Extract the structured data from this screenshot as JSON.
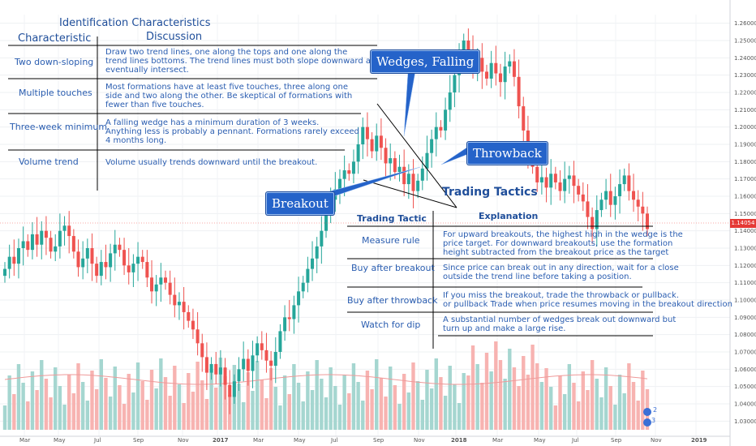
{
  "left_table": {
    "title": "Identification Characteristics",
    "col_characteristic": "Characteristic",
    "col_discussion": "Discussion",
    "rows": [
      {
        "label": "Two down-sloping",
        "text": "Draw two trend lines, one along the tops and one along the\ntrend lines bottoms. The trend lines must both slope downward and\neventually intersect."
      },
      {
        "label": "Multiple touches",
        "text": "Most formations have at least five touches, three along one\nside and two along the other. Be skeptical of formations with\nfewer than five touches."
      },
      {
        "label": "Three-week minimum",
        "text": "A falling wedge has a minimum duration of 3 weeks.\nAnything less is probably a pennant. Formations rarely exceed\n4 months long."
      },
      {
        "label": "Volume trend",
        "text": "Volume usually trends downward until the breakout."
      }
    ]
  },
  "callouts": {
    "wedges": "Wedges, Falling",
    "throwback": "Throwback",
    "breakout": "Breakout"
  },
  "tactics": {
    "title": "Trading Tactics",
    "col_tactic": "Trading Tactic",
    "col_explanation": "Explanation",
    "rows": [
      {
        "label": "Measure rule",
        "text": "For upward breakouts, the highest high in the wedge is the\nprice target. For downward breakouts, use the formation\nheight subtracted from the breakout price as the target"
      },
      {
        "label": "Buy after breakout",
        "text": "Since price can break out in any direction, wait for a close\noutside the trend line before taking a position."
      },
      {
        "label": "Buy after throwback",
        "text": "If you miss the breakout, trade the throwback or pullback.\nor pullback Trade when price resumes moving in the breakout direction"
      },
      {
        "label": "Watch for dip",
        "text": "A substantial number of wedges break out downward but\nturn up and make a large rise."
      }
    ]
  },
  "chart": {
    "current_price": "1.14054",
    "y_ticks": [
      "1.26000",
      "1.25000",
      "1.24000",
      "1.23000",
      "1.22000",
      "1.21000",
      "1.20000",
      "1.19000",
      "1.18000",
      "1.17000",
      "1.16000",
      "1.15000",
      "1.14000",
      "1.13000",
      "1.12000",
      "1.11000",
      "1.10000",
      "1.09000",
      "1.08000",
      "1.07000",
      "1.06000",
      "1.05000",
      "1.04000",
      "1.03000"
    ],
    "x_ticks": [
      "Mar",
      "May",
      "Jul",
      "Sep",
      "Nov",
      "2017",
      "Mar",
      "May",
      "Jul",
      "Sep",
      "Nov",
      "2018",
      "Mar",
      "May",
      "Jul",
      "Sep",
      "Nov",
      "2019"
    ],
    "colors": {
      "up": "#26a69a",
      "down": "#ef5350",
      "vol_up": "#a5d6d0",
      "vol_down": "#f7b3b1",
      "ma": "#ef9a9a",
      "callout": "#2563c9"
    },
    "logo_counts": [
      "2",
      "3"
    ]
  },
  "chart_data": {
    "type": "candlestick",
    "y_range": [
      1.025,
      1.265
    ],
    "closes": [
      1.118,
      1.125,
      1.121,
      1.13,
      1.134,
      1.129,
      1.138,
      1.132,
      1.14,
      1.136,
      1.128,
      1.131,
      1.14,
      1.143,
      1.137,
      1.128,
      1.119,
      1.124,
      1.13,
      1.121,
      1.114,
      1.122,
      1.119,
      1.127,
      1.132,
      1.129,
      1.12,
      1.116,
      1.121,
      1.125,
      1.122,
      1.113,
      1.105,
      1.109,
      1.113,
      1.11,
      1.103,
      1.097,
      1.099,
      1.093,
      1.088,
      1.083,
      1.075,
      1.067,
      1.058,
      1.063,
      1.057,
      1.061,
      1.051,
      1.044,
      1.053,
      1.06,
      1.066,
      1.059,
      1.068,
      1.075,
      1.071,
      1.065,
      1.062,
      1.07,
      1.082,
      1.09,
      1.089,
      1.097,
      1.105,
      1.11,
      1.118,
      1.124,
      1.131,
      1.14,
      1.15,
      1.158,
      1.164,
      1.17,
      1.175,
      1.173,
      1.18,
      1.19,
      1.2,
      1.193,
      1.186,
      1.195,
      1.188,
      1.179,
      1.182,
      1.174,
      1.177,
      1.167,
      1.173,
      1.163,
      1.169,
      1.176,
      1.185,
      1.193,
      1.2,
      1.198,
      1.21,
      1.22,
      1.23,
      1.24,
      1.25,
      1.243,
      1.235,
      1.24,
      1.232,
      1.228,
      1.237,
      1.231,
      1.226,
      1.235,
      1.238,
      1.229,
      1.212,
      1.198,
      1.186,
      1.177,
      1.168,
      1.171,
      1.165,
      1.173,
      1.168,
      1.163,
      1.17,
      1.172,
      1.166,
      1.161,
      1.157,
      1.148,
      1.141,
      1.152,
      1.158,
      1.163,
      1.155,
      1.16,
      1.167,
      1.172,
      1.163,
      1.158,
      1.154,
      1.15,
      1.141
    ]
  }
}
